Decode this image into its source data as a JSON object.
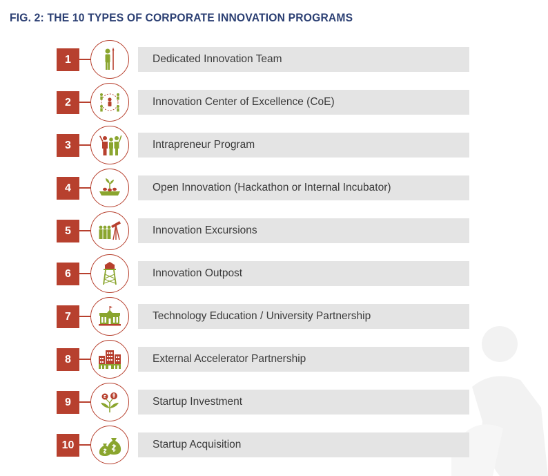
{
  "figure": {
    "title": "FIG. 2: THE 10 TYPES OF CORPORATE INNOVATION PROGRAMS"
  },
  "colors": {
    "accent_red": "#b7402e",
    "icon_green": "#8aa52e",
    "icon_dark_red": "#b7402e",
    "bar_gray": "#e4e4e4",
    "title_navy": "#2b3f73"
  },
  "items": [
    {
      "number": "1",
      "label": "Dedicated Innovation Team",
      "icon": "person-with-staff-icon"
    },
    {
      "number": "2",
      "label": "Innovation Center of Excellence (CoE)",
      "icon": "network-of-people-icon"
    },
    {
      "number": "3",
      "label": "Intrapreneur Program",
      "icon": "group-raising-hands-icon"
    },
    {
      "number": "4",
      "label": "Open Innovation (Hackathon or Internal Incubator)",
      "icon": "seedling-planter-icon"
    },
    {
      "number": "5",
      "label": "Innovation Excursions",
      "icon": "group-with-telescope-icon"
    },
    {
      "number": "6",
      "label": "Innovation Outpost",
      "icon": "watchtower-icon"
    },
    {
      "number": "7",
      "label": "Technology Education / University Partnership",
      "icon": "university-building-icon"
    },
    {
      "number": "8",
      "label": "External Accelerator Partnership",
      "icon": "city-buildings-icon"
    },
    {
      "number": "9",
      "label": "Startup Investment",
      "icon": "money-plant-icon"
    },
    {
      "number": "10",
      "label": "Startup Acquisition",
      "icon": "money-bags-icon"
    }
  ]
}
